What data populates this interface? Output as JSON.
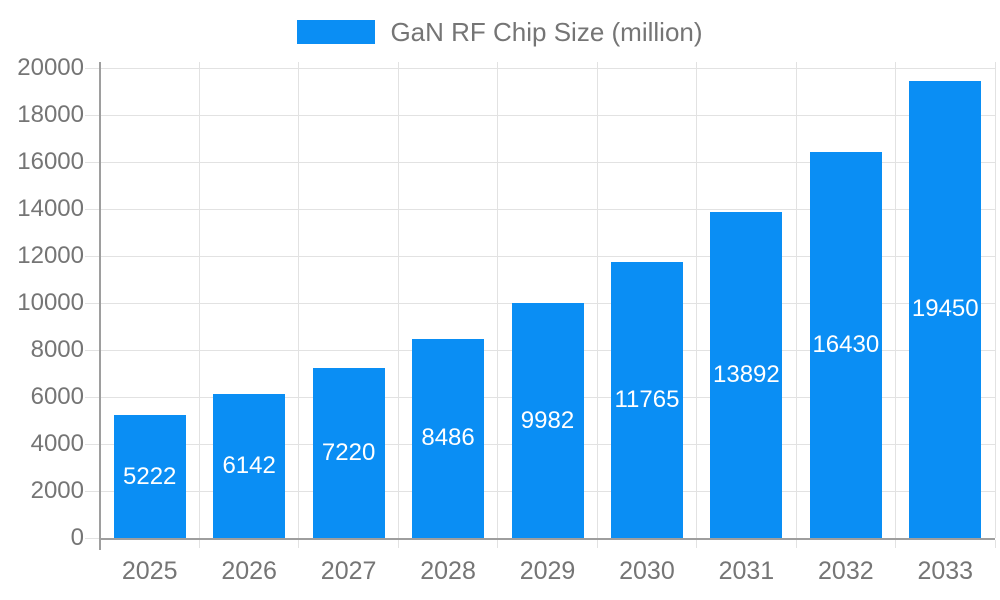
{
  "legend": {
    "label": "GaN RF Chip Size (million)"
  },
  "chart_data": {
    "type": "bar",
    "series_name": "GaN RF Chip Size (million)",
    "title": "",
    "xlabel": "",
    "ylabel": "",
    "categories": [
      "2025",
      "2026",
      "2027",
      "2028",
      "2029",
      "2030",
      "2031",
      "2032",
      "2033"
    ],
    "values": [
      5222,
      6142,
      7220,
      8486,
      9982,
      11765,
      13892,
      16430,
      19450
    ],
    "ylim": [
      0,
      20000
    ],
    "ytick_step": 2000,
    "yticks": [
      0,
      2000,
      4000,
      6000,
      8000,
      10000,
      12000,
      14000,
      16000,
      18000,
      20000
    ],
    "grid": true,
    "legend_position": "top",
    "value_labels": "inside-center"
  },
  "colors": {
    "bar": "#0a8ef4",
    "grid": "#e2e2e2",
    "axis": "#9e9e9e",
    "tick_text": "#757575",
    "value_label": "#ffffff",
    "background": "#ffffff"
  }
}
